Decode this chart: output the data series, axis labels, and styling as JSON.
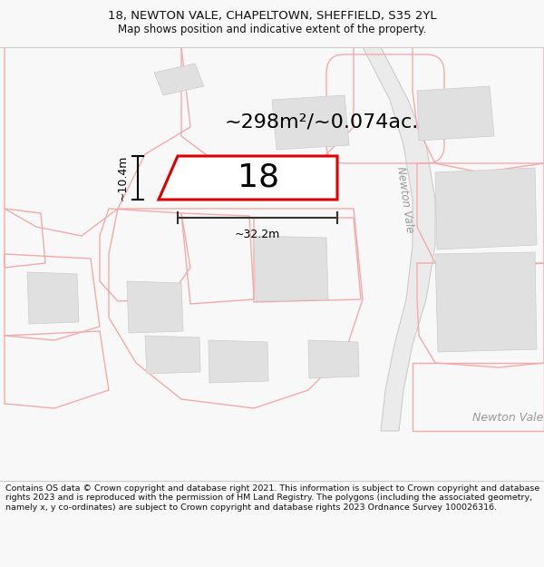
{
  "title_line1": "18, NEWTON VALE, CHAPELTOWN, SHEFFIELD, S35 2YL",
  "title_line2": "Map shows position and indicative extent of the property.",
  "footer_text": "Contains OS data © Crown copyright and database right 2021. This information is subject to Crown copyright and database rights 2023 and is reproduced with the permission of HM Land Registry. The polygons (including the associated geometry, namely x, y co-ordinates) are subject to Crown copyright and database rights 2023 Ordnance Survey 100026316.",
  "area_label": "~298m²/~0.074ac.",
  "number_label": "18",
  "dim_height": "~10.4m",
  "dim_width": "~32.2m",
  "road_label_diagonal": "Newton Vale",
  "road_label_horiz": "Newton Vale",
  "bg_color": "#f8f8f8",
  "map_bg": "#ffffff",
  "highlight_color": "#dd0000",
  "other_polys_color": "#f5aaaa",
  "other_polys_stroke": "#f5aaaa",
  "road_color": "#e8e8e8",
  "road_stroke": "#cccccc",
  "building_fill": "#e0e0e0",
  "title_fontsize": 9.5,
  "subtitle_fontsize": 8.5,
  "footer_fontsize": 6.8,
  "area_fontsize": 16,
  "number_fontsize": 26,
  "dim_fontsize": 9
}
